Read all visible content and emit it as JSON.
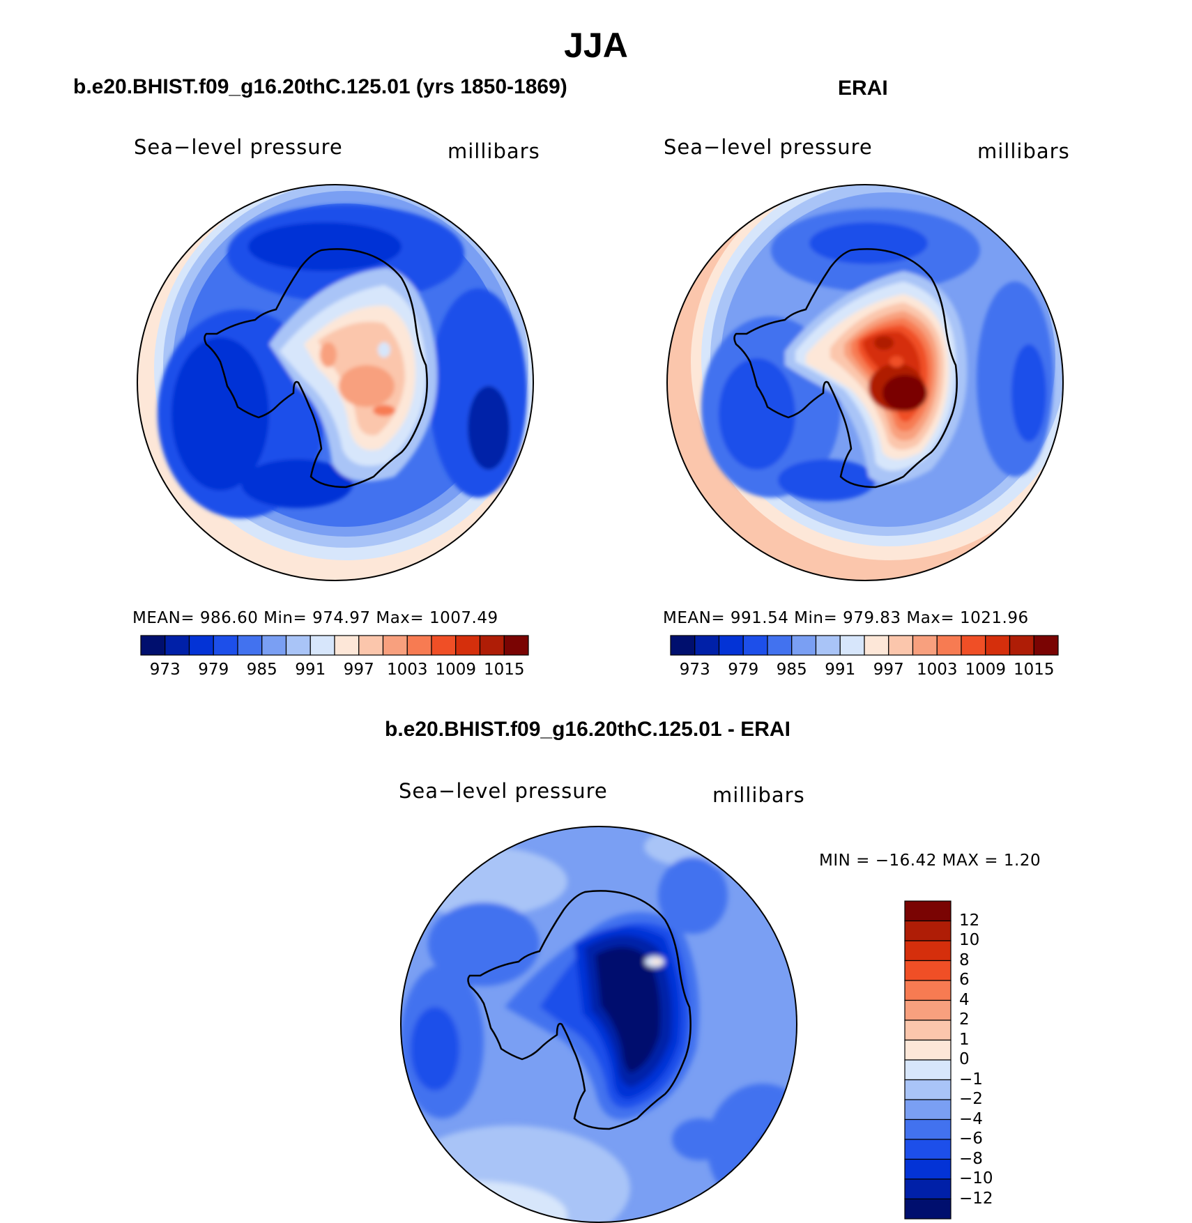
{
  "main_title": "JJA",
  "panels": [
    {
      "title": "b.e20.BHIST.f09_g16.20thC.125.01 (yrs 1850-1869)",
      "variable": "Sea−level pressure",
      "units": "millibars",
      "stats": "MEAN=  986.60    Min=  974.97    Max=  1007.49",
      "colorbar_ticks": [
        "973",
        "979",
        "985",
        "991",
        "997",
        "1003",
        "1009",
        "1015"
      ]
    },
    {
      "title": "ERAI",
      "variable": "Sea−level pressure",
      "units": "millibars",
      "stats": "MEAN=  991.54    Min=  979.83    Max=  1021.96",
      "colorbar_ticks": [
        "973",
        "979",
        "985",
        "991",
        "997",
        "1003",
        "1009",
        "1015"
      ]
    },
    {
      "title": "b.e20.BHIST.f09_g16.20thC.125.01 - ERAI",
      "variable": "Sea−level pressure",
      "units": "millibars",
      "stats": "MIN = −16.42  MAX =    1.20",
      "colorbar_ticks": [
        "12",
        "10",
        "8",
        "6",
        "4",
        "2",
        "1",
        "0",
        "−1",
        "−2",
        "−4",
        "−6",
        "−8",
        "−10",
        "−12"
      ]
    }
  ],
  "colors": {
    "abs_scale": [
      "#000f6e",
      "#0020a8",
      "#0333d6",
      "#1d4fea",
      "#4272ef",
      "#7a9ff3",
      "#a9c4f7",
      "#d7e6fb",
      "#fde7d8",
      "#fbc6ac",
      "#f8a07e",
      "#f77b52",
      "#f04f26",
      "#d52f0c",
      "#af1d06",
      "#7a0403"
    ],
    "diff_scale": [
      "#7a0403",
      "#af1d06",
      "#d52f0c",
      "#f04f26",
      "#f77b52",
      "#f8a07e",
      "#fbc6ac",
      "#fde7d8",
      "#d7e6fb",
      "#a9c4f7",
      "#7a9ff3",
      "#4272ef",
      "#1d4fea",
      "#0333d6",
      "#0020a8",
      "#000f6e"
    ]
  }
}
